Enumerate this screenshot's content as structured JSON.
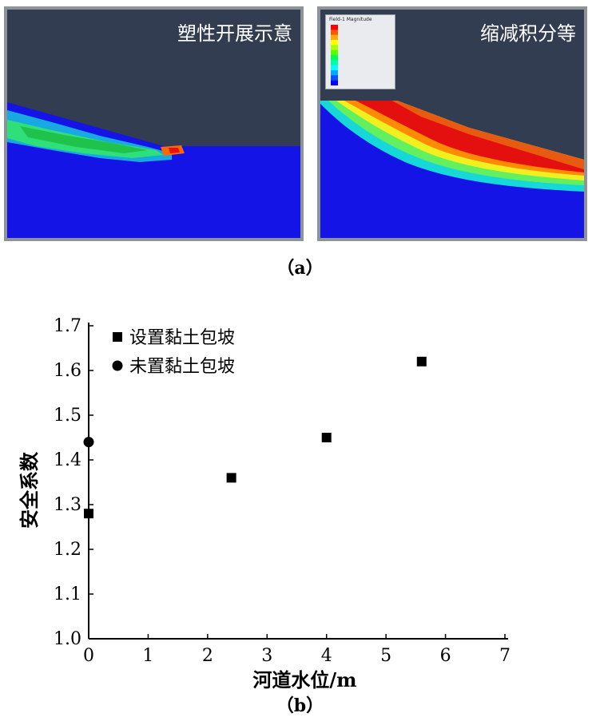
{
  "figure_a": {
    "left_panel_title": "塑性开展示意",
    "right_panel_title": "缩减积分等",
    "legend_title": "Field-1 Magnitude",
    "legend_colors": [
      "#ff0000",
      "#ff5500",
      "#ffaa00",
      "#ffff00",
      "#aaff00",
      "#55ff00",
      "#00ff55",
      "#00ffaa",
      "#00ffff",
      "#00aaff",
      "#0055ff",
      "#0000ff"
    ],
    "caption": "（a）"
  },
  "figure_b": {
    "caption": "（b）"
  },
  "chart_data": {
    "type": "scatter",
    "xlabel": "河道水位/m",
    "ylabel": "安全系数",
    "xlim": [
      0,
      7
    ],
    "ylim": [
      1.0,
      1.7
    ],
    "xticks": [
      "0",
      "1",
      "2",
      "3",
      "4",
      "5",
      "6",
      "7"
    ],
    "yticks": [
      "1.0",
      "1.1",
      "1.2",
      "1.3",
      "1.4",
      "1.5",
      "1.6",
      "1.7"
    ],
    "legend_position": "top-left",
    "series": [
      {
        "name": "设置黏土包坡",
        "marker": "square",
        "points": [
          [
            0,
            1.28
          ],
          [
            2.4,
            1.36
          ],
          [
            4.0,
            1.45
          ],
          [
            5.6,
            1.62
          ]
        ]
      },
      {
        "name": "未置黏土包坡",
        "marker": "circle",
        "points": [
          [
            0,
            1.44
          ]
        ]
      }
    ]
  }
}
